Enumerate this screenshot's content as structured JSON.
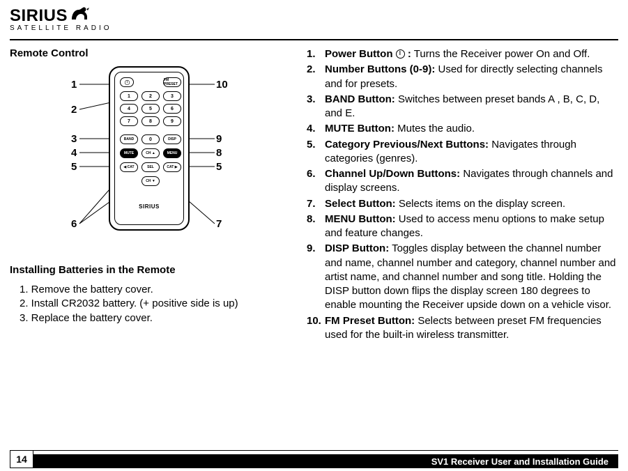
{
  "brand": {
    "name": "SIRIUS",
    "sub": "SATELLITE RADIO",
    "mini": "SIRIUS"
  },
  "sections": {
    "remote_title": "Remote Control",
    "install_title": "Installing Batteries in the Remote"
  },
  "install_steps": [
    "1. Remove the battery cover.",
    "2. Install CR2032 battery. (+ positive side is up)",
    "3. Replace the battery cover."
  ],
  "callouts": {
    "left": [
      "1",
      "2",
      "3",
      "4",
      "5",
      "6"
    ],
    "right": [
      "10",
      "9",
      "8",
      "5",
      "7"
    ]
  },
  "remote_buttons": {
    "numbers": [
      "1",
      "2",
      "3",
      "4",
      "5",
      "6",
      "7",
      "8",
      "9"
    ],
    "zero": "0",
    "band": "BAND",
    "disp": "DISP",
    "mute": "MUTE",
    "menu": "MENU",
    "ch_up": "CH ▲",
    "ch_dn": "CH ▼",
    "cat_l": "◀ CAT",
    "cat_r": "CAT ▶",
    "sel": "SEL",
    "fm": "FM PRESET"
  },
  "descriptions": [
    {
      "n": "1.",
      "label": "Power Button",
      "icon": true,
      "suffix": ":",
      "text": " Turns the Receiver power On and Off."
    },
    {
      "n": "2.",
      "label": "Number Buttons (0-9):",
      "text": " Used for directly selecting channels and for presets."
    },
    {
      "n": "3.",
      "label": "BAND Button:",
      "text": " Switches between preset bands A , B, C, D, and E."
    },
    {
      "n": "4.",
      "label": "MUTE Button:",
      "text": " Mutes the audio."
    },
    {
      "n": "5.",
      "label": "Category Previous/Next Buttons:",
      "text": " Navigates through categories (genres)."
    },
    {
      "n": "6.",
      "label": "Channel Up/Down Buttons:",
      "text": " Navigates through channels and display screens."
    },
    {
      "n": "7.",
      "label": "Select Button:",
      "text": " Selects items on the display screen."
    },
    {
      "n": "8.",
      "label": "MENU Button:",
      "text": " Used to access menu options to make setup and feature changes."
    },
    {
      "n": "9.",
      "label": "DISP Button:",
      "text": " Toggles display between the channel number and name, channel number and category, channel number and artist name, and channel number and song title. Holding the DISP button down flips the display screen 180 degrees to enable mounting the Receiver upside down on a vehicle visor."
    },
    {
      "n": "10.",
      "label": "FM Preset Button:",
      "text": " Selects between preset FM frequencies used for the built-in wireless transmitter."
    }
  ],
  "footer": {
    "page": "14",
    "title": "SV1 Receiver User and Installation Guide"
  },
  "colors": {
    "text": "#000000",
    "bg": "#ffffff",
    "bar": "#000000"
  }
}
